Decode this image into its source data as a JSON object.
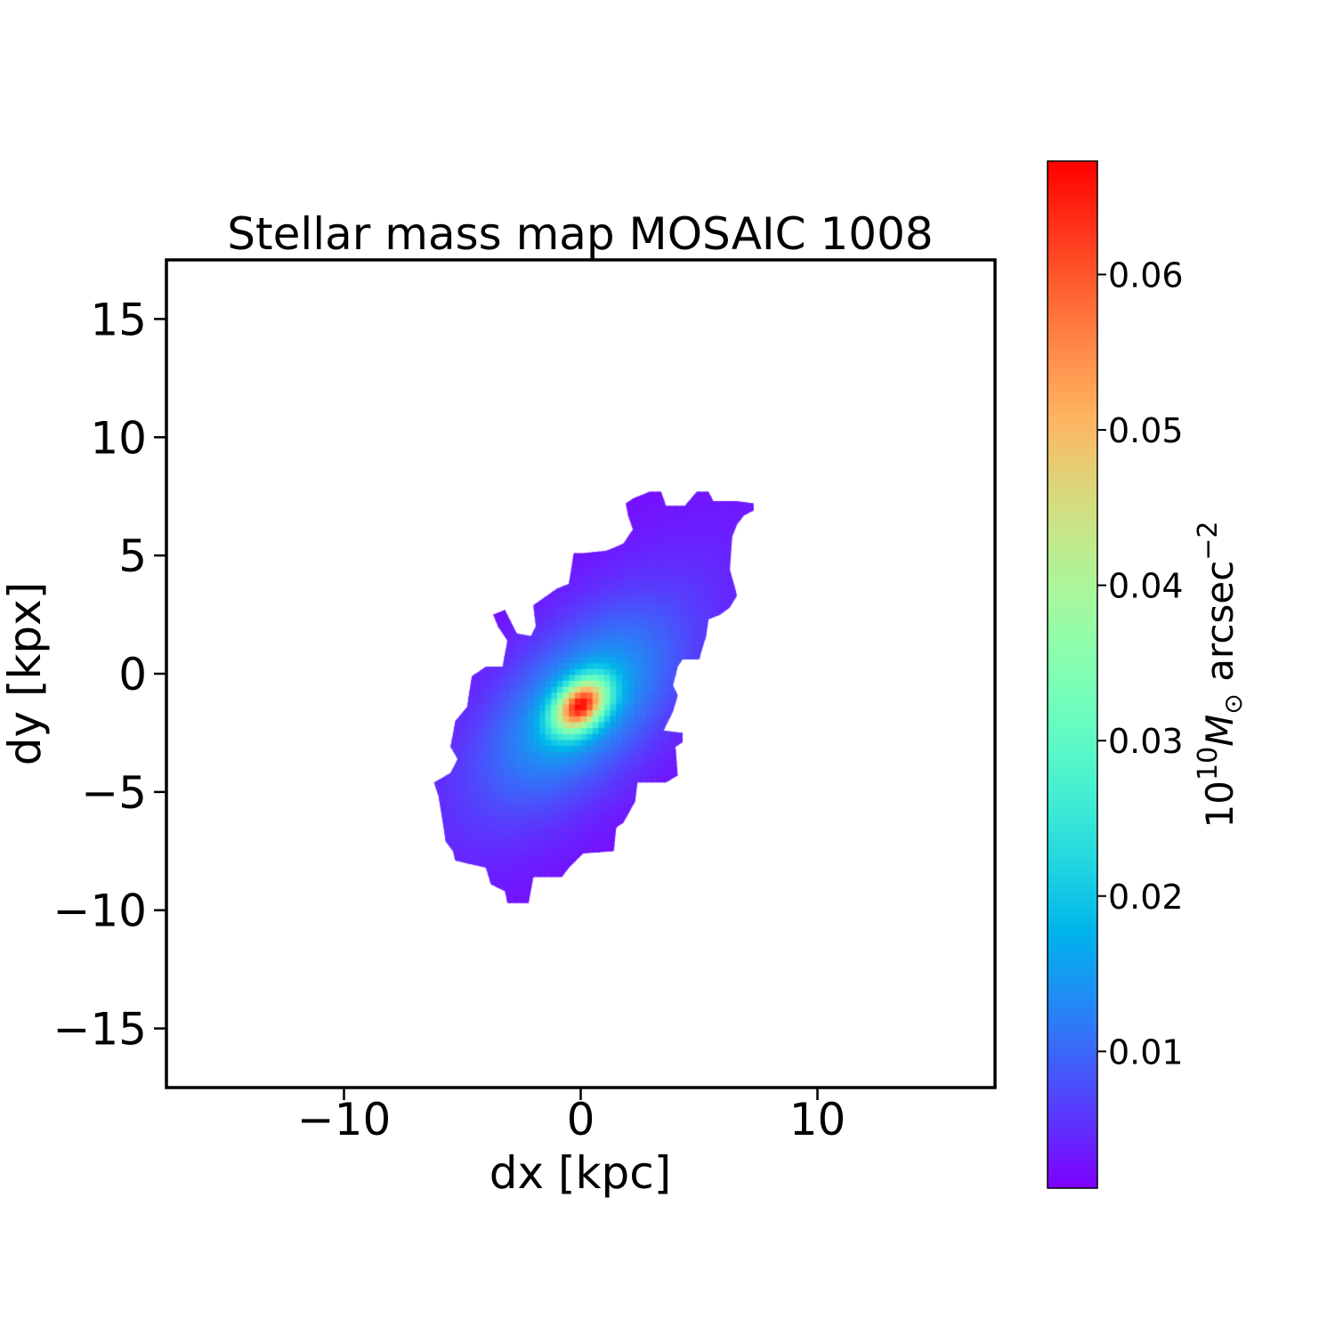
{
  "chart_data": {
    "type": "heatmap",
    "title": "Stellar mass map MOSAIC 1008",
    "xlabel": "dx [kpc]",
    "ylabel": "dy [kpx]",
    "xlim": [
      -17.5,
      17.5
    ],
    "ylim": [
      -17.5,
      17.5
    ],
    "xticks": [
      -10,
      0,
      10
    ],
    "xtick_labels": [
      "−10",
      "0",
      "10"
    ],
    "yticks": [
      -15,
      -10,
      -5,
      0,
      5,
      10,
      15
    ],
    "ytick_labels": [
      "−15",
      "−10",
      "−5",
      "0",
      "5",
      "10",
      "15"
    ],
    "grid": false,
    "colormap": "rainbow",
    "colorbar": {
      "label_base": "10",
      "label_exp": "10",
      "label_symbol": "M",
      "label_sub": "⊙",
      "label_unit": " arcsec",
      "label_unit_exp": "−2",
      "range": [
        0.0012,
        0.0673
      ],
      "ticks": [
        0.01,
        0.02,
        0.03,
        0.04,
        0.05,
        0.06
      ],
      "tick_labels": [
        "0.01",
        "0.02",
        "0.03",
        "0.04",
        "0.05",
        "0.06"
      ]
    },
    "peak": {
      "x": 0.0,
      "y": -1.3,
      "value": 0.067
    },
    "background_level": 0.003,
    "outline": [
      [
        1.9,
        7.2
      ],
      [
        2.2,
        7.4
      ],
      [
        2.9,
        7.7
      ],
      [
        3.4,
        7.7
      ],
      [
        3.6,
        7.1
      ],
      [
        4.4,
        7.1
      ],
      [
        4.9,
        7.7
      ],
      [
        5.4,
        7.7
      ],
      [
        5.6,
        7.3
      ],
      [
        6.6,
        7.3
      ],
      [
        7.3,
        7.2
      ],
      [
        7.3,
        6.9
      ],
      [
        6.9,
        6.7
      ],
      [
        6.6,
        6.3
      ],
      [
        6.4,
        5.8
      ],
      [
        6.3,
        4.4
      ],
      [
        6.5,
        3.7
      ],
      [
        6.6,
        3.3
      ],
      [
        6.3,
        2.8
      ],
      [
        5.9,
        2.5
      ],
      [
        5.4,
        2.3
      ],
      [
        5.3,
        1.6
      ],
      [
        5.0,
        0.6
      ],
      [
        4.3,
        0.6
      ],
      [
        4.1,
        0.3
      ],
      [
        3.9,
        -0.5
      ],
      [
        4.1,
        -0.9
      ],
      [
        3.9,
        -1.6
      ],
      [
        3.5,
        -2.4
      ],
      [
        4.3,
        -2.5
      ],
      [
        4.3,
        -2.9
      ],
      [
        4.0,
        -3.1
      ],
      [
        4.1,
        -4.3
      ],
      [
        3.6,
        -4.6
      ],
      [
        2.4,
        -4.6
      ],
      [
        2.3,
        -5.4
      ],
      [
        1.8,
        -6.3
      ],
      [
        1.5,
        -6.5
      ],
      [
        1.4,
        -7.5
      ],
      [
        0.1,
        -7.6
      ],
      [
        -0.5,
        -8.2
      ],
      [
        -0.8,
        -8.6
      ],
      [
        -2.0,
        -8.6
      ],
      [
        -2.2,
        -9.7
      ],
      [
        -3.1,
        -9.7
      ],
      [
        -3.2,
        -9.2
      ],
      [
        -3.8,
        -8.9
      ],
      [
        -4.0,
        -8.2
      ],
      [
        -5.3,
        -7.9
      ],
      [
        -5.4,
        -7.5
      ],
      [
        -5.7,
        -7.1
      ],
      [
        -6.0,
        -5.2
      ],
      [
        -6.2,
        -4.6
      ],
      [
        -5.5,
        -4.2
      ],
      [
        -5.2,
        -3.6
      ],
      [
        -5.5,
        -3.1
      ],
      [
        -5.3,
        -2.0
      ],
      [
        -4.8,
        -1.4
      ],
      [
        -4.6,
        -0.1
      ],
      [
        -4.0,
        0.3
      ],
      [
        -3.3,
        0.3
      ],
      [
        -3.1,
        1.4
      ],
      [
        -3.5,
        2.0
      ],
      [
        -3.7,
        2.5
      ],
      [
        -3.2,
        2.7
      ],
      [
        -2.7,
        1.7
      ],
      [
        -2.1,
        1.6
      ],
      [
        -1.9,
        2.0
      ],
      [
        -2.0,
        2.9
      ],
      [
        -1.0,
        3.6
      ],
      [
        -0.5,
        3.8
      ],
      [
        -0.3,
        5.1
      ],
      [
        0.1,
        5.1
      ],
      [
        1.1,
        5.2
      ],
      [
        1.8,
        5.5
      ],
      [
        2.2,
        6.1
      ],
      [
        2.0,
        6.7
      ]
    ]
  }
}
